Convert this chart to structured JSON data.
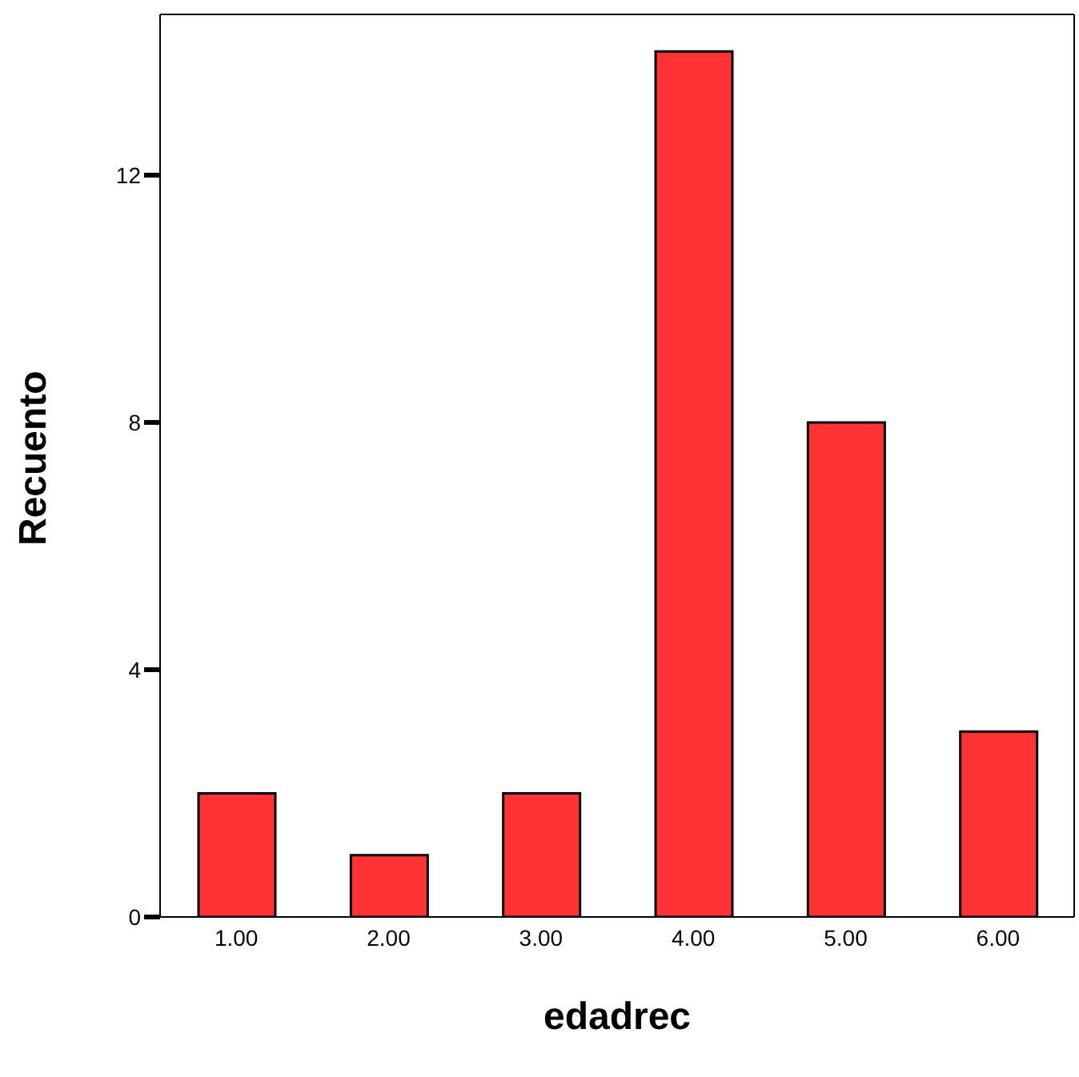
{
  "chart_data": {
    "type": "bar",
    "xlabel": "edadrec",
    "ylabel": "Recuento",
    "categories": [
      "1.00",
      "2.00",
      "3.00",
      "4.00",
      "5.00",
      "6.00"
    ],
    "values": [
      2,
      1,
      2,
      14,
      8,
      3
    ],
    "color": "#ff3333",
    "ylim": [
      0,
      14.6
    ],
    "yticks": [
      0,
      4,
      8,
      12
    ],
    "grid": false,
    "legend": false
  }
}
